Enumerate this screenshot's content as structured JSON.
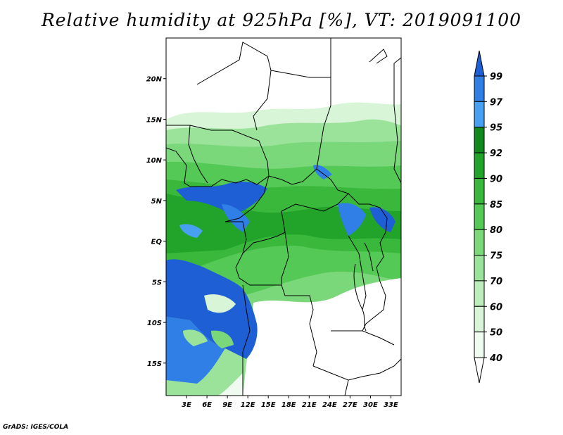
{
  "title": "Relative humidity at 925hPa [%], VT: 2019091100",
  "credit": "GrADS: IGES/COLA",
  "map": {
    "lon_range": [
      0,
      34.5
    ],
    "lat_range": [
      -19,
      25
    ],
    "lon_ticks": [
      "3E",
      "6E",
      "9E",
      "12E",
      "15E",
      "18E",
      "21E",
      "24E",
      "27E",
      "30E",
      "33E"
    ],
    "lat_ticks": [
      "20N",
      "15N",
      "10N",
      "5N",
      "EQ",
      "5S",
      "10S",
      "15S"
    ]
  },
  "colorbar": {
    "labels": [
      "99",
      "97",
      "95",
      "92",
      "90",
      "85",
      "80",
      "75",
      "70",
      "60",
      "50",
      "40"
    ],
    "colors": [
      "#1f5fd6",
      "#2f7fe6",
      "#48a0f0",
      "#12891c",
      "#22a32a",
      "#3ab83c",
      "#55c955",
      "#7ad77a",
      "#9be39b",
      "#bdedbd",
      "#d8f5d8",
      "#eefbee"
    ]
  }
}
